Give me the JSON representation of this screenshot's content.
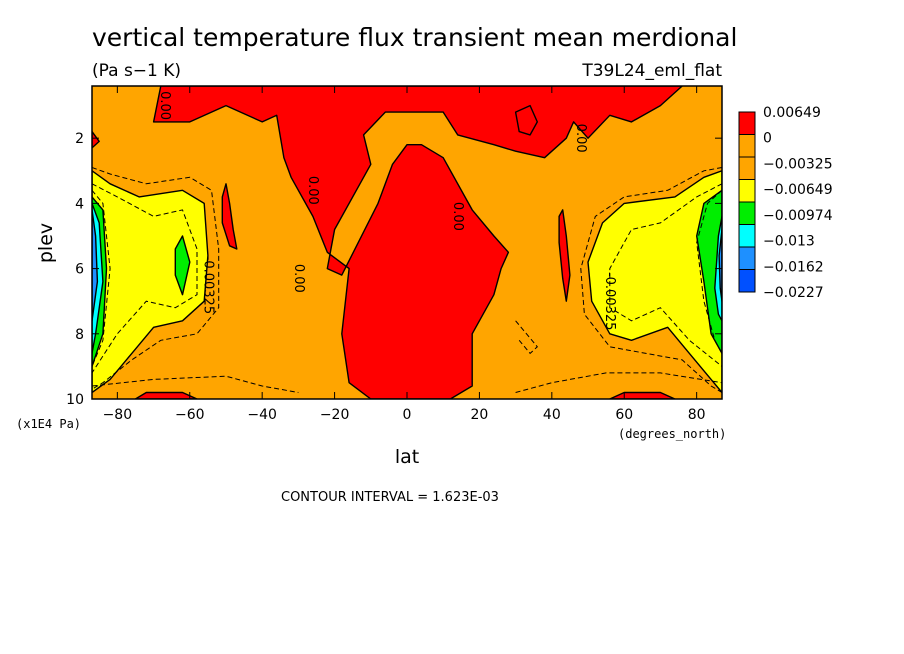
{
  "chart_data": {
    "type": "heatmap",
    "title": "vertical temperature flux transient mean merdional",
    "units": "(Pa s−1 K)",
    "run_label": "T39L24_eml_flat",
    "xlabel": "lat",
    "xunits": "(degrees_north)",
    "ylabel": "plev",
    "yunits": "(x1E4 Pa)",
    "xlim": [
      -87,
      87
    ],
    "ylim": [
      10,
      0.4
    ],
    "y_inverted": true,
    "xticks": [
      -80,
      -60,
      -40,
      -20,
      0,
      20,
      40,
      60,
      80
    ],
    "yticks": [
      2,
      4,
      6,
      8,
      10
    ],
    "contour_interval_text": "CONTOUR INTERVAL = 1.623E-03",
    "contour_labels": [
      {
        "text": "0.00",
        "x": -68,
        "y": 1.0
      },
      {
        "text": "0.00",
        "x": -27,
        "y": 3.6
      },
      {
        "text": "0.00",
        "x": -31,
        "y": 6.3
      },
      {
        "text": "0.00",
        "x": 13,
        "y": 4.4
      },
      {
        "text": "0.00",
        "x": 47,
        "y": 2.0
      },
      {
        "text": "-0.00325",
        "x": -56,
        "y": 6.5
      },
      {
        "text": "-0.00325",
        "x": 55,
        "y": 7.0
      }
    ],
    "legend": {
      "placement": "right",
      "levels": [
        {
          "label": "0.00649",
          "color": "#ff0000"
        },
        {
          "label": "0",
          "color": "#ffa500"
        },
        {
          "label": "−0.00325",
          "color": "#ffa500"
        },
        {
          "label": "−0.00649",
          "color": "#ffff00"
        },
        {
          "label": "−0.00974",
          "color": "#00ee00"
        },
        {
          "label": "−0.013",
          "color": "#00ffff"
        },
        {
          "label": "−0.0162",
          "color": "#1e90ff"
        },
        {
          "label": "−0.0227",
          "color": "#0050ff"
        }
      ],
      "swatches": [
        "#ff0000",
        "#ffa500",
        "#ffa500",
        "#ffff00",
        "#00ee00",
        "#00ffff",
        "#1e90ff",
        "#0050ff"
      ]
    },
    "regions": [
      {
        "level": "0 to 0.00649",
        "color": "#ff0000",
        "description": "upper troposphere high latitudes top band",
        "outline": [
          [
            -68,
            0.4
          ],
          [
            -70,
            1.5
          ],
          [
            -60,
            1.5
          ],
          [
            -50,
            1.0
          ],
          [
            -40,
            1.5
          ],
          [
            -36,
            1.3
          ],
          [
            -34,
            2.6
          ],
          [
            -32,
            3.2
          ],
          [
            -26,
            4.4
          ],
          [
            -22,
            5.5
          ],
          [
            -16,
            6.0
          ],
          [
            -18,
            8.0
          ],
          [
            -16,
            9.5
          ],
          [
            -10,
            10
          ],
          [
            12,
            10
          ],
          [
            18,
            9.6
          ],
          [
            18,
            8.0
          ],
          [
            24,
            6.8
          ],
          [
            26,
            6.0
          ],
          [
            28,
            5.5
          ],
          [
            24,
            5.0
          ],
          [
            18,
            4.2
          ],
          [
            10,
            2.6
          ],
          [
            4,
            2.2
          ],
          [
            0,
            2.2
          ],
          [
            -4,
            2.8
          ],
          [
            -8,
            4.0
          ],
          [
            -18,
            6.2
          ],
          [
            -22,
            6.0
          ],
          [
            -20,
            4.8
          ],
          [
            -10,
            2.8
          ],
          [
            -12,
            1.9
          ],
          [
            -6,
            1.2
          ],
          [
            10,
            1.2
          ],
          [
            14,
            1.9
          ],
          [
            24,
            2.2
          ],
          [
            30,
            2.4
          ],
          [
            38,
            2.6
          ],
          [
            44,
            2.0
          ],
          [
            46,
            1.5
          ],
          [
            50,
            2.0
          ],
          [
            56,
            1.3
          ],
          [
            62,
            1.5
          ],
          [
            70,
            1.0
          ],
          [
            76,
            0.4
          ]
        ]
      },
      {
        "level": "0 to 0.00649",
        "color": "#ff0000",
        "description": "southern narrow cell",
        "outline": [
          [
            -50,
            3.4
          ],
          [
            -49,
            4.0
          ],
          [
            -48,
            4.8
          ],
          [
            -47,
            5.4
          ],
          [
            -49,
            5.3
          ],
          [
            -51,
            4.6
          ],
          [
            -51,
            3.8
          ]
        ]
      },
      {
        "level": "0 to 0.00649",
        "color": "#ff0000",
        "description": "northern narrow cell",
        "outline": [
          [
            43,
            4.2
          ],
          [
            44,
            5.0
          ],
          [
            45,
            6.2
          ],
          [
            44,
            7.0
          ],
          [
            43,
            6.3
          ],
          [
            42,
            5.2
          ],
          [
            42,
            4.4
          ]
        ]
      },
      {
        "level": "0 to 0.00649",
        "color": "#ff0000",
        "description": "small cell near 33N",
        "outline": [
          [
            30,
            1.2
          ],
          [
            34,
            1.0
          ],
          [
            36,
            1.5
          ],
          [
            34,
            1.9
          ],
          [
            31,
            1.8
          ]
        ]
      },
      {
        "level": "0 to 0.00649",
        "color": "#ff0000",
        "description": "small cell near 87S 2",
        "outline": [
          [
            -87,
            1.8
          ],
          [
            -85,
            2.1
          ],
          [
            -87,
            2.3
          ]
        ]
      },
      {
        "level": "0 to 0.00649",
        "color": "#ff0000",
        "description": "bottom lobes",
        "outline": [
          [
            -75,
            10
          ],
          [
            -72,
            9.8
          ],
          [
            -62,
            9.8
          ],
          [
            -58,
            10
          ]
        ]
      },
      {
        "level": "0 to 0.00649",
        "color": "#ff0000",
        "description": "bottom lobe N",
        "outline": [
          [
            56,
            10
          ],
          [
            60,
            9.8
          ],
          [
            70,
            9.8
          ],
          [
            74,
            10
          ]
        ]
      },
      {
        "level": "-0.00649 to -0.00325",
        "color": "#ffff00",
        "description": "southern subpolar mid troposphere",
        "outline": [
          [
            -87,
            3.0
          ],
          [
            -82,
            3.4
          ],
          [
            -74,
            3.8
          ],
          [
            -62,
            3.6
          ],
          [
            -56,
            4.0
          ],
          [
            -55,
            5.6
          ],
          [
            -56,
            7.0
          ],
          [
            -62,
            7.6
          ],
          [
            -70,
            7.8
          ],
          [
            -76,
            8.6
          ],
          [
            -82,
            9.4
          ],
          [
            -87,
            9.8
          ]
        ]
      },
      {
        "level": "-0.00649 to -0.00325",
        "color": "#ffff00",
        "description": "northern subpolar mid troposphere",
        "outline": [
          [
            87,
            3.0
          ],
          [
            82,
            3.2
          ],
          [
            74,
            3.8
          ],
          [
            60,
            4.0
          ],
          [
            54,
            4.6
          ],
          [
            50,
            5.8
          ],
          [
            51,
            7.0
          ],
          [
            56,
            8.0
          ],
          [
            62,
            8.2
          ],
          [
            72,
            7.8
          ],
          [
            78,
            8.6
          ],
          [
            84,
            9.4
          ],
          [
            87,
            9.8
          ]
        ]
      },
      {
        "level": "-0.00974 to -0.00649",
        "color": "#00ee00",
        "description": "southern green core",
        "outline": [
          [
            -64,
            5.4
          ],
          [
            -62,
            5.0
          ],
          [
            -60,
            5.8
          ],
          [
            -62,
            6.8
          ],
          [
            -64,
            6.2
          ]
        ]
      },
      {
        "level": "-0.00974 to -0.00649",
        "color": "#00ee00",
        "description": "southern polar green band",
        "outline": [
          [
            -87,
            3.8
          ],
          [
            -84,
            4.2
          ],
          [
            -83,
            6.0
          ],
          [
            -84,
            8.0
          ],
          [
            -87,
            9.0
          ]
        ]
      },
      {
        "level": "-0.00974 to -0.00649",
        "color": "#00ee00",
        "description": "northern polar green band",
        "outline": [
          [
            87,
            3.6
          ],
          [
            82,
            4.0
          ],
          [
            80,
            5.0
          ],
          [
            82,
            6.4
          ],
          [
            84,
            8.0
          ],
          [
            87,
            8.6
          ]
        ]
      },
      {
        "level": "-0.013 to -0.00974",
        "color": "#00ffff",
        "description": "southern polar cyan",
        "outline": [
          [
            -87,
            4.0
          ],
          [
            -85,
            4.6
          ],
          [
            -84,
            6.4
          ],
          [
            -86,
            8.0
          ],
          [
            -87,
            8.6
          ]
        ]
      },
      {
        "level": "-0.0162 to -0.013",
        "color": "#1e90ff",
        "description": "southern polar blue",
        "outline": [
          [
            -87,
            4.2
          ],
          [
            -86,
            5.0
          ],
          [
            -85.5,
            6.4
          ],
          [
            -87,
            7.6
          ]
        ]
      },
      {
        "level": "-0.013 to -0.00974",
        "color": "#00ffff",
        "description": "northern polar cyan",
        "outline": [
          [
            87,
            4.4
          ],
          [
            86,
            5.0
          ],
          [
            85,
            6.6
          ],
          [
            86,
            7.4
          ],
          [
            87,
            7.6
          ]
        ]
      },
      {
        "level": "-0.0162 to -0.013",
        "color": "#1e90ff",
        "description": "northern polar blue",
        "outline": [
          [
            87,
            4.8
          ],
          [
            86.2,
            5.6
          ],
          [
            86.5,
            6.6
          ],
          [
            87,
            7.0
          ]
        ]
      }
    ],
    "dashed_contours": [
      [
        [
          -87,
          2.9
        ],
        [
          -82,
          3.1
        ],
        [
          -72,
          3.4
        ],
        [
          -60,
          3.2
        ],
        [
          -54,
          3.6
        ],
        [
          -52,
          5.4
        ],
        [
          -52,
          7.2
        ],
        [
          -58,
          8.0
        ],
        [
          -68,
          8.2
        ],
        [
          -76,
          8.8
        ],
        [
          -84,
          9.5
        ],
        [
          -87,
          9.7
        ]
      ],
      [
        [
          -87,
          3.4
        ],
        [
          -80,
          3.8
        ],
        [
          -70,
          4.4
        ],
        [
          -62,
          4.2
        ],
        [
          -58,
          5.4
        ],
        [
          -58,
          6.8
        ],
        [
          -64,
          7.2
        ],
        [
          -72,
          7.0
        ],
        [
          -80,
          8.0
        ],
        [
          -87,
          9.2
        ]
      ],
      [
        [
          -87,
          3.6
        ],
        [
          -84,
          4.0
        ],
        [
          -82,
          6.0
        ],
        [
          -84,
          8.2
        ],
        [
          -87,
          9.0
        ]
      ],
      [
        [
          87,
          2.9
        ],
        [
          82,
          3.0
        ],
        [
          72,
          3.6
        ],
        [
          60,
          3.8
        ],
        [
          52,
          4.4
        ],
        [
          48,
          6.0
        ],
        [
          49,
          7.4
        ],
        [
          56,
          8.4
        ],
        [
          66,
          8.6
        ],
        [
          76,
          8.8
        ],
        [
          84,
          9.6
        ],
        [
          87,
          9.8
        ]
      ],
      [
        [
          87,
          3.4
        ],
        [
          80,
          3.8
        ],
        [
          70,
          4.6
        ],
        [
          62,
          4.8
        ],
        [
          56,
          6.0
        ],
        [
          56,
          7.2
        ],
        [
          62,
          7.6
        ],
        [
          70,
          7.2
        ],
        [
          78,
          8.2
        ],
        [
          87,
          9.0
        ]
      ],
      [
        [
          87,
          3.6
        ],
        [
          83,
          4.0
        ],
        [
          80,
          5.2
        ],
        [
          82,
          7.0
        ],
        [
          85,
          8.2
        ],
        [
          87,
          8.6
        ]
      ],
      [
        [
          -87,
          9.6
        ],
        [
          -70,
          9.4
        ],
        [
          -50,
          9.3
        ],
        [
          -40,
          9.6
        ],
        [
          -30,
          9.8
        ]
      ],
      [
        [
          30,
          9.8
        ],
        [
          40,
          9.5
        ],
        [
          55,
          9.2
        ],
        [
          70,
          9.2
        ],
        [
          87,
          9.5
        ]
      ],
      [
        [
          30,
          7.6
        ],
        [
          33,
          8.0
        ],
        [
          36,
          8.4
        ],
        [
          34,
          8.6
        ],
        [
          31,
          8.2
        ]
      ]
    ]
  }
}
